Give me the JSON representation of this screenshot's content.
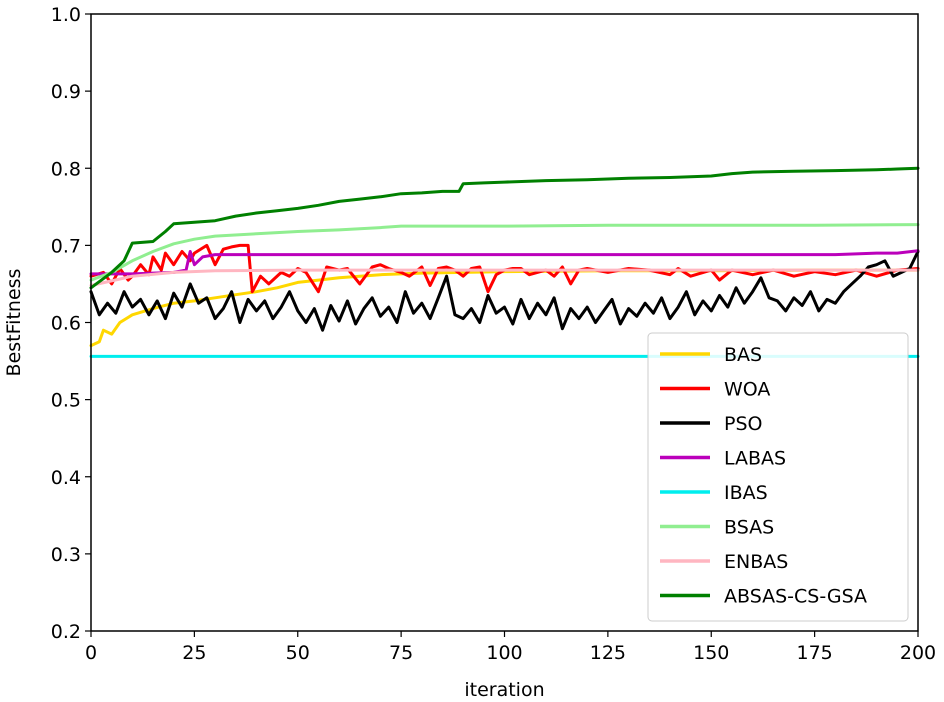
{
  "chart_data": {
    "type": "line",
    "title": "",
    "xlabel": "iteration",
    "ylabel": "BestFitness",
    "xlim": [
      0,
      200
    ],
    "ylim": [
      0.2,
      1.0
    ],
    "xticks": [
      0,
      25,
      50,
      75,
      100,
      125,
      150,
      175,
      200
    ],
    "yticks": [
      0.2,
      0.3,
      0.4,
      0.5,
      0.6,
      0.7,
      0.8,
      0.9,
      1.0
    ],
    "xtick_labels": [
      "0",
      "25",
      "50",
      "75",
      "100",
      "125",
      "150",
      "175",
      "200"
    ],
    "ytick_labels": [
      "0.2",
      "0.3",
      "0.4",
      "0.5",
      "0.6",
      "0.7",
      "0.8",
      "0.9",
      "1.0"
    ],
    "grid": false,
    "legend_position": "lower-right",
    "series": [
      {
        "name": "BAS",
        "color": "#FFD700",
        "points": [
          [
            0,
            0.57
          ],
          [
            2,
            0.575
          ],
          [
            3,
            0.59
          ],
          [
            5,
            0.585
          ],
          [
            7,
            0.6
          ],
          [
            10,
            0.61
          ],
          [
            15,
            0.618
          ],
          [
            20,
            0.625
          ],
          [
            25,
            0.628
          ],
          [
            30,
            0.632
          ],
          [
            35,
            0.636
          ],
          [
            40,
            0.64
          ],
          [
            45,
            0.645
          ],
          [
            50,
            0.652
          ],
          [
            55,
            0.655
          ],
          [
            60,
            0.658
          ],
          [
            65,
            0.66
          ],
          [
            70,
            0.662
          ],
          [
            75,
            0.663
          ],
          [
            80,
            0.664
          ],
          [
            90,
            0.665
          ],
          [
            100,
            0.666
          ],
          [
            125,
            0.667
          ],
          [
            150,
            0.667
          ],
          [
            175,
            0.668
          ],
          [
            200,
            0.668
          ]
        ]
      },
      {
        "name": "WOA",
        "color": "#FF0000",
        "points": [
          [
            0,
            0.66
          ],
          [
            3,
            0.665
          ],
          [
            5,
            0.65
          ],
          [
            7,
            0.67
          ],
          [
            9,
            0.655
          ],
          [
            10,
            0.66
          ],
          [
            12,
            0.675
          ],
          [
            14,
            0.662
          ],
          [
            15,
            0.685
          ],
          [
            17,
            0.668
          ],
          [
            18,
            0.69
          ],
          [
            20,
            0.675
          ],
          [
            22,
            0.692
          ],
          [
            24,
            0.68
          ],
          [
            25,
            0.69
          ],
          [
            28,
            0.7
          ],
          [
            30,
            0.675
          ],
          [
            32,
            0.695
          ],
          [
            34,
            0.698
          ],
          [
            36,
            0.7
          ],
          [
            38,
            0.7
          ],
          [
            39,
            0.64
          ],
          [
            41,
            0.66
          ],
          [
            43,
            0.65
          ],
          [
            46,
            0.665
          ],
          [
            48,
            0.66
          ],
          [
            50,
            0.67
          ],
          [
            52,
            0.665
          ],
          [
            55,
            0.64
          ],
          [
            57,
            0.672
          ],
          [
            60,
            0.668
          ],
          [
            62,
            0.67
          ],
          [
            65,
            0.65
          ],
          [
            68,
            0.672
          ],
          [
            70,
            0.675
          ],
          [
            72,
            0.67
          ],
          [
            75,
            0.665
          ],
          [
            77,
            0.66
          ],
          [
            80,
            0.672
          ],
          [
            82,
            0.648
          ],
          [
            84,
            0.67
          ],
          [
            86,
            0.672
          ],
          [
            88,
            0.668
          ],
          [
            90,
            0.66
          ],
          [
            92,
            0.67
          ],
          [
            94,
            0.672
          ],
          [
            96,
            0.64
          ],
          [
            98,
            0.662
          ],
          [
            100,
            0.668
          ],
          [
            102,
            0.67
          ],
          [
            104,
            0.67
          ],
          [
            106,
            0.662
          ],
          [
            110,
            0.668
          ],
          [
            112,
            0.66
          ],
          [
            114,
            0.672
          ],
          [
            116,
            0.65
          ],
          [
            118,
            0.668
          ],
          [
            120,
            0.67
          ],
          [
            125,
            0.665
          ],
          [
            130,
            0.67
          ],
          [
            135,
            0.668
          ],
          [
            140,
            0.662
          ],
          [
            142,
            0.67
          ],
          [
            145,
            0.66
          ],
          [
            150,
            0.668
          ],
          [
            152,
            0.655
          ],
          [
            155,
            0.668
          ],
          [
            160,
            0.662
          ],
          [
            165,
            0.668
          ],
          [
            170,
            0.66
          ],
          [
            175,
            0.666
          ],
          [
            180,
            0.662
          ],
          [
            185,
            0.668
          ],
          [
            190,
            0.66
          ],
          [
            195,
            0.668
          ],
          [
            200,
            0.67
          ]
        ]
      },
      {
        "name": "PSO",
        "color": "#000000",
        "points": [
          [
            0,
            0.64
          ],
          [
            2,
            0.61
          ],
          [
            4,
            0.625
          ],
          [
            6,
            0.612
          ],
          [
            8,
            0.64
          ],
          [
            10,
            0.62
          ],
          [
            12,
            0.63
          ],
          [
            14,
            0.61
          ],
          [
            16,
            0.628
          ],
          [
            18,
            0.605
          ],
          [
            20,
            0.638
          ],
          [
            22,
            0.62
          ],
          [
            24,
            0.65
          ],
          [
            26,
            0.625
          ],
          [
            28,
            0.632
          ],
          [
            30,
            0.605
          ],
          [
            32,
            0.618
          ],
          [
            34,
            0.64
          ],
          [
            36,
            0.6
          ],
          [
            38,
            0.63
          ],
          [
            40,
            0.615
          ],
          [
            42,
            0.628
          ],
          [
            44,
            0.605
          ],
          [
            46,
            0.62
          ],
          [
            48,
            0.64
          ],
          [
            50,
            0.615
          ],
          [
            52,
            0.6
          ],
          [
            54,
            0.618
          ],
          [
            56,
            0.59
          ],
          [
            58,
            0.622
          ],
          [
            60,
            0.602
          ],
          [
            62,
            0.628
          ],
          [
            64,
            0.598
          ],
          [
            66,
            0.618
          ],
          [
            68,
            0.632
          ],
          [
            70,
            0.608
          ],
          [
            72,
            0.62
          ],
          [
            74,
            0.6
          ],
          [
            76,
            0.64
          ],
          [
            78,
            0.612
          ],
          [
            80,
            0.625
          ],
          [
            82,
            0.605
          ],
          [
            84,
            0.632
          ],
          [
            86,
            0.66
          ],
          [
            88,
            0.61
          ],
          [
            90,
            0.605
          ],
          [
            92,
            0.618
          ],
          [
            94,
            0.6
          ],
          [
            96,
            0.635
          ],
          [
            98,
            0.612
          ],
          [
            100,
            0.62
          ],
          [
            102,
            0.598
          ],
          [
            104,
            0.63
          ],
          [
            106,
            0.605
          ],
          [
            108,
            0.625
          ],
          [
            110,
            0.61
          ],
          [
            112,
            0.632
          ],
          [
            114,
            0.592
          ],
          [
            116,
            0.618
          ],
          [
            118,
            0.605
          ],
          [
            120,
            0.62
          ],
          [
            122,
            0.6
          ],
          [
            124,
            0.615
          ],
          [
            126,
            0.63
          ],
          [
            128,
            0.598
          ],
          [
            130,
            0.618
          ],
          [
            132,
            0.608
          ],
          [
            134,
            0.625
          ],
          [
            136,
            0.612
          ],
          [
            138,
            0.632
          ],
          [
            140,
            0.605
          ],
          [
            142,
            0.62
          ],
          [
            144,
            0.64
          ],
          [
            146,
            0.61
          ],
          [
            148,
            0.628
          ],
          [
            150,
            0.615
          ],
          [
            152,
            0.635
          ],
          [
            154,
            0.62
          ],
          [
            156,
            0.645
          ],
          [
            158,
            0.625
          ],
          [
            160,
            0.64
          ],
          [
            162,
            0.658
          ],
          [
            164,
            0.632
          ],
          [
            166,
            0.628
          ],
          [
            168,
            0.615
          ],
          [
            170,
            0.632
          ],
          [
            172,
            0.622
          ],
          [
            174,
            0.64
          ],
          [
            176,
            0.615
          ],
          [
            178,
            0.63
          ],
          [
            180,
            0.625
          ],
          [
            182,
            0.64
          ],
          [
            184,
            0.65
          ],
          [
            186,
            0.66
          ],
          [
            188,
            0.672
          ],
          [
            190,
            0.675
          ],
          [
            192,
            0.68
          ],
          [
            194,
            0.66
          ],
          [
            196,
            0.665
          ],
          [
            198,
            0.67
          ],
          [
            200,
            0.692
          ]
        ]
      },
      {
        "name": "LABAS",
        "color": "#BB00BB",
        "points": [
          [
            0,
            0.663
          ],
          [
            10,
            0.663
          ],
          [
            20,
            0.665
          ],
          [
            23,
            0.668
          ],
          [
            24,
            0.692
          ],
          [
            25,
            0.675
          ],
          [
            27,
            0.685
          ],
          [
            30,
            0.688
          ],
          [
            40,
            0.688
          ],
          [
            60,
            0.688
          ],
          [
            80,
            0.688
          ],
          [
            100,
            0.688
          ],
          [
            120,
            0.688
          ],
          [
            140,
            0.688
          ],
          [
            160,
            0.688
          ],
          [
            180,
            0.688
          ],
          [
            190,
            0.69
          ],
          [
            195,
            0.69
          ],
          [
            200,
            0.693
          ]
        ]
      },
      {
        "name": "IBAS",
        "color": "#00EEEE",
        "points": [
          [
            0,
            0.556
          ],
          [
            200,
            0.556
          ]
        ]
      },
      {
        "name": "BSAS",
        "color": "#90EE90",
        "points": [
          [
            0,
            0.655
          ],
          [
            5,
            0.665
          ],
          [
            10,
            0.68
          ],
          [
            15,
            0.692
          ],
          [
            20,
            0.702
          ],
          [
            25,
            0.708
          ],
          [
            30,
            0.712
          ],
          [
            40,
            0.715
          ],
          [
            50,
            0.718
          ],
          [
            60,
            0.72
          ],
          [
            70,
            0.723
          ],
          [
            75,
            0.725
          ],
          [
            100,
            0.725
          ],
          [
            125,
            0.726
          ],
          [
            150,
            0.726
          ],
          [
            175,
            0.726
          ],
          [
            200,
            0.727
          ]
        ]
      },
      {
        "name": "ENBAS",
        "color": "#FFB6C1",
        "points": [
          [
            0,
            0.648
          ],
          [
            10,
            0.66
          ],
          [
            20,
            0.665
          ],
          [
            30,
            0.667
          ],
          [
            50,
            0.668
          ],
          [
            100,
            0.668
          ],
          [
            150,
            0.668
          ],
          [
            200,
            0.668
          ]
        ]
      },
      {
        "name": "ABSAS-CS-GSA",
        "color": "#008000",
        "points": [
          [
            0,
            0.645
          ],
          [
            5,
            0.665
          ],
          [
            8,
            0.68
          ],
          [
            10,
            0.703
          ],
          [
            15,
            0.705
          ],
          [
            18,
            0.718
          ],
          [
            20,
            0.728
          ],
          [
            25,
            0.73
          ],
          [
            30,
            0.732
          ],
          [
            35,
            0.738
          ],
          [
            40,
            0.742
          ],
          [
            45,
            0.745
          ],
          [
            50,
            0.748
          ],
          [
            55,
            0.752
          ],
          [
            60,
            0.757
          ],
          [
            65,
            0.76
          ],
          [
            70,
            0.763
          ],
          [
            75,
            0.767
          ],
          [
            80,
            0.768
          ],
          [
            85,
            0.77
          ],
          [
            89,
            0.77
          ],
          [
            90,
            0.78
          ],
          [
            95,
            0.781
          ],
          [
            100,
            0.782
          ],
          [
            110,
            0.784
          ],
          [
            120,
            0.785
          ],
          [
            130,
            0.787
          ],
          [
            140,
            0.788
          ],
          [
            150,
            0.79
          ],
          [
            155,
            0.793
          ],
          [
            160,
            0.795
          ],
          [
            170,
            0.796
          ],
          [
            180,
            0.797
          ],
          [
            190,
            0.798
          ],
          [
            195,
            0.799
          ],
          [
            200,
            0.8
          ]
        ]
      }
    ]
  }
}
